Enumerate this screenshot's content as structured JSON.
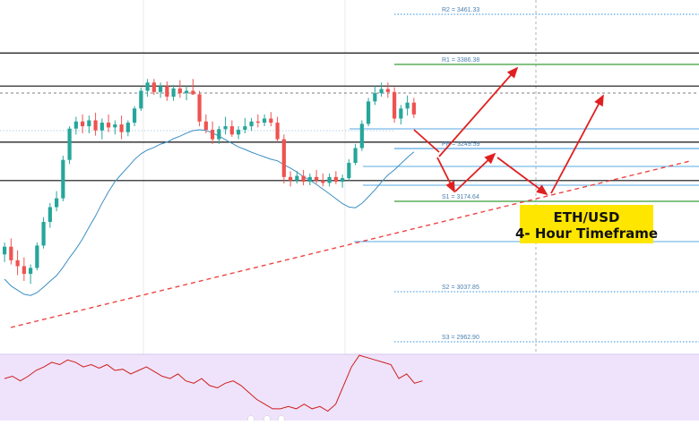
{
  "colors": {
    "bull": "#26a69a",
    "bear": "#ef5350",
    "ma": "#3b8ec4",
    "level_blue": "#5aa9e6",
    "level_green": "#3a9c3a",
    "trendline": "#ef4444",
    "arrow": "#e02020",
    "rsi_fill": "#eee3fb",
    "rsi_line": "#d01c1c",
    "badge_bg": "#ffe600",
    "hline": "#111111"
  },
  "badge": {
    "line1": "ETH/USD",
    "line2": "4- Hour Timeframe"
  },
  "pivot_levels": [
    {
      "key": "r2",
      "label": "R2 = 3461.33",
      "style": "blue-dotted"
    },
    {
      "key": "r1",
      "label": "R1 = 3386.38",
      "style": "green"
    },
    {
      "key": "pp",
      "label": "PP = 3249.59",
      "style": "blue"
    },
    {
      "key": "s1",
      "label": "S1 = 3174.64",
      "style": "green"
    },
    {
      "key": "s2",
      "label": "S2 = 3037.85",
      "style": "blue-dotted"
    },
    {
      "key": "s3",
      "label": "S3 = 2962.90",
      "style": "blue-dotted"
    }
  ],
  "chart_data": {
    "type": "candlestick",
    "title": "",
    "symbol": "ETH/USD",
    "timeframe": "4- Hour Timeframe",
    "indicators": [
      "moving average",
      "RSI",
      "pivot points",
      "horizontal support/resistance",
      "rising trendline"
    ],
    "pivot_points": {
      "R2": 3461.33,
      "R1": 3386.38,
      "PP": 3249.59,
      "S1": 3174.64,
      "S2": 3037.85,
      "S3": 2962.9
    },
    "horizontal_levels": [
      3386,
      3330,
      3235,
      3170
    ],
    "trendline": {
      "from": [
        0,
        3010
      ],
      "to": [
        100,
        3290
      ],
      "style": "dashed",
      "color": "red"
    },
    "candles_ohlc": [
      [
        3045,
        3065,
        3032,
        3058
      ],
      [
        3058,
        3072,
        3028,
        3035
      ],
      [
        3035,
        3052,
        3010,
        3025
      ],
      [
        3025,
        3040,
        3000,
        3012
      ],
      [
        3012,
        3028,
        2995,
        3022
      ],
      [
        3022,
        3065,
        3018,
        3060
      ],
      [
        3060,
        3108,
        3055,
        3100
      ],
      [
        3100,
        3132,
        3090,
        3125
      ],
      [
        3125,
        3152,
        3118,
        3140
      ],
      [
        3140,
        3212,
        3135,
        3205
      ],
      [
        3205,
        3262,
        3198,
        3258
      ],
      [
        3258,
        3278,
        3248,
        3270
      ],
      [
        3270,
        3282,
        3250,
        3262
      ],
      [
        3262,
        3280,
        3250,
        3272
      ],
      [
        3272,
        3285,
        3246,
        3255
      ],
      [
        3255,
        3275,
        3240,
        3268
      ],
      [
        3268,
        3282,
        3252,
        3260
      ],
      [
        3260,
        3272,
        3248,
        3265
      ],
      [
        3265,
        3280,
        3240,
        3252
      ],
      [
        3252,
        3272,
        3245,
        3268
      ],
      [
        3268,
        3296,
        3262,
        3292
      ],
      [
        3292,
        3328,
        3288,
        3322
      ],
      [
        3322,
        3342,
        3312,
        3336
      ],
      [
        3336,
        3342,
        3315,
        3320
      ],
      [
        3320,
        3336,
        3310,
        3330
      ],
      [
        3330,
        3338,
        3305,
        3312
      ],
      [
        3312,
        3332,
        3305,
        3326
      ],
      [
        3326,
        3340,
        3310,
        3318
      ],
      [
        3318,
        3330,
        3306,
        3322
      ],
      [
        3322,
        3342,
        3315,
        3316
      ],
      [
        3316,
        3322,
        3262,
        3270
      ],
      [
        3270,
        3282,
        3250,
        3256
      ],
      [
        3256,
        3270,
        3232,
        3240
      ],
      [
        3240,
        3262,
        3232,
        3257
      ],
      [
        3257,
        3278,
        3248,
        3262
      ],
      [
        3262,
        3272,
        3244,
        3248
      ],
      [
        3248,
        3262,
        3240,
        3256
      ],
      [
        3256,
        3276,
        3250,
        3262
      ],
      [
        3262,
        3276,
        3254,
        3270
      ],
      [
        3270,
        3282,
        3260,
        3268
      ],
      [
        3268,
        3282,
        3262,
        3275
      ],
      [
        3275,
        3286,
        3262,
        3268
      ],
      [
        3268,
        3278,
        3235,
        3240
      ],
      [
        3240,
        3248,
        3165,
        3176
      ],
      [
        3176,
        3186,
        3160,
        3170
      ],
      [
        3170,
        3186,
        3165,
        3178
      ],
      [
        3178,
        3188,
        3162,
        3168
      ],
      [
        3168,
        3182,
        3162,
        3176
      ],
      [
        3176,
        3188,
        3165,
        3170
      ],
      [
        3170,
        3182,
        3160,
        3166
      ],
      [
        3166,
        3182,
        3160,
        3176
      ],
      [
        3176,
        3186,
        3164,
        3168
      ],
      [
        3168,
        3180,
        3158,
        3174
      ],
      [
        3174,
        3206,
        3170,
        3200
      ],
      [
        3200,
        3232,
        3196,
        3225
      ],
      [
        3225,
        3272,
        3220,
        3266
      ],
      [
        3266,
        3310,
        3262,
        3304
      ],
      [
        3304,
        3330,
        3298,
        3318
      ],
      [
        3318,
        3336,
        3312,
        3325
      ],
      [
        3325,
        3336,
        3310,
        3320
      ],
      [
        3320,
        3328,
        3268,
        3275
      ],
      [
        3275,
        3298,
        3265,
        3292
      ],
      [
        3292,
        3314,
        3280,
        3302
      ],
      [
        3302,
        3310,
        3276,
        3282
      ]
    ],
    "projection_path": "down to S1 area, bounce toward PP, pullback to trendline, rally above R1",
    "rsi": [
      48,
      50,
      46,
      50,
      55,
      58,
      62,
      60,
      64,
      62,
      58,
      60,
      57,
      60,
      55,
      56,
      52,
      55,
      58,
      54,
      50,
      48,
      52,
      46,
      44,
      48,
      42,
      40,
      44,
      46,
      42,
      36,
      30,
      26,
      22,
      22,
      24,
      22,
      26,
      22,
      24,
      20,
      26,
      42,
      58,
      68,
      66,
      64,
      62,
      60,
      48,
      52,
      44,
      46
    ]
  }
}
